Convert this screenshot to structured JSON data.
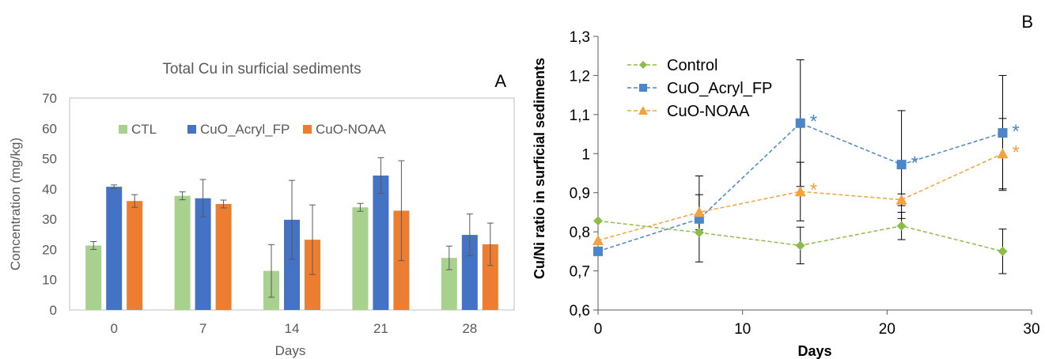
{
  "chart_data": [
    {
      "type": "bar",
      "panel_label": "A",
      "title": "Total Cu in surficial sediments",
      "xlabel": "Days",
      "ylabel": "Concentration (mg/kg)",
      "ylim": [
        0,
        70
      ],
      "yticks": [
        0,
        10,
        20,
        30,
        40,
        50,
        60,
        70
      ],
      "categories": [
        "0",
        "7",
        "14",
        "21",
        "28"
      ],
      "legend_position": "top",
      "grid": false,
      "series": [
        {
          "name": "CTL",
          "color": "#a9d18e",
          "values": [
            21.3,
            37.7,
            12.9,
            33.9,
            17.2
          ],
          "errors": [
            1.3,
            1.3,
            8.7,
            1.3,
            3.9
          ]
        },
        {
          "name": "CuO_Acryl_FP",
          "color": "#4472c4",
          "values": [
            40.7,
            36.9,
            29.8,
            44.4,
            24.8
          ],
          "errors": [
            0.6,
            6.2,
            13.0,
            5.9,
            6.9
          ]
        },
        {
          "name": "CuO-NOAA",
          "color": "#ed7d31",
          "values": [
            36.0,
            35.0,
            23.2,
            32.8,
            21.7
          ],
          "errors": [
            2.1,
            1.3,
            11.5,
            16.5,
            7.0
          ]
        }
      ]
    },
    {
      "type": "line",
      "panel_label": "B",
      "xlabel": "Days",
      "ylabel": "Cu/Ni ratio in surficial sediments",
      "xlim": [
        0,
        30
      ],
      "ylim": [
        0.6,
        1.3
      ],
      "xticks": [
        0,
        10,
        20,
        30
      ],
      "xtick_labels": [
        "0",
        "10",
        "20",
        "30"
      ],
      "yticks": [
        0.6,
        0.7,
        0.8,
        0.9,
        1.0,
        1.1,
        1.2,
        1.3
      ],
      "ytick_labels": [
        "0,6",
        "0,7",
        "0,8",
        "0,9",
        "1",
        "1,1",
        "1,2",
        "1,3"
      ],
      "legend_position": "top-left",
      "grid": false,
      "series": [
        {
          "name": "Control",
          "color": "#8cbd4a",
          "marker": "diamond",
          "x": [
            0,
            7,
            14,
            21,
            28
          ],
          "y": [
            0.828,
            0.798,
            0.765,
            0.815,
            0.75
          ],
          "errors": [
            0,
            0,
            0.047,
            0.035,
            0.057
          ],
          "significant": [
            false,
            false,
            false,
            false,
            false
          ]
        },
        {
          "name": "CuO_Acryl_FP",
          "color": "#4a86c8",
          "marker": "square",
          "x": [
            0,
            7,
            14,
            21,
            28
          ],
          "y": [
            0.75,
            0.833,
            1.078,
            0.972,
            1.053
          ],
          "errors": [
            0,
            0.11,
            0.162,
            0.138,
            0.147
          ],
          "significant": [
            false,
            false,
            true,
            true,
            true
          ]
        },
        {
          "name": "CuO-NOAA",
          "color": "#f5a13c",
          "marker": "triangle",
          "x": [
            0,
            7,
            14,
            21,
            28
          ],
          "y": [
            0.778,
            0.85,
            0.903,
            0.882,
            1.0
          ],
          "errors": [
            0,
            0.045,
            0.075,
            0.015,
            0.09
          ],
          "significant": [
            false,
            false,
            true,
            false,
            true
          ]
        }
      ],
      "significance_mark": "*"
    }
  ]
}
